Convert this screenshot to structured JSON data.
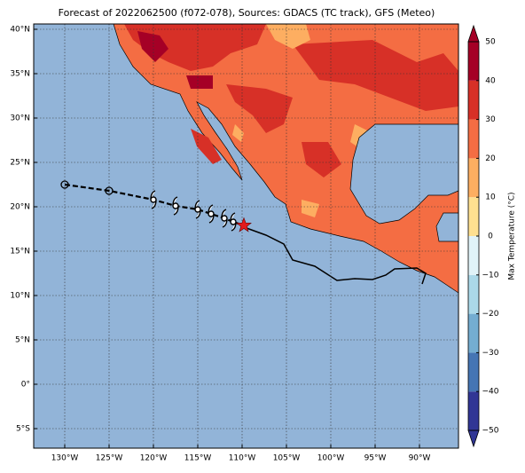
{
  "chart_data": {
    "type": "map",
    "title": "Forecast of 2022062500 (f072-078), Sources: GDACS (TC track), GFS (Meteo)",
    "xlim": [
      -133.5,
      -85.6
    ],
    "ylim": [
      -7.2,
      40.6
    ],
    "grid": true,
    "xticks": [
      {
        "value": -130,
        "label": "130°W"
      },
      {
        "value": -125,
        "label": "125°W"
      },
      {
        "value": -120,
        "label": "120°W"
      },
      {
        "value": -115,
        "label": "115°W"
      },
      {
        "value": -110,
        "label": "110°W"
      },
      {
        "value": -105,
        "label": "105°W"
      },
      {
        "value": -100,
        "label": "100°W"
      },
      {
        "value": -95,
        "label": "95°W"
      },
      {
        "value": -90,
        "label": "90°W"
      }
    ],
    "yticks": [
      {
        "value": -5,
        "label": "5°S"
      },
      {
        "value": 0,
        "label": "0°"
      },
      {
        "value": 5,
        "label": "5°N"
      },
      {
        "value": 10,
        "label": "10°N"
      },
      {
        "value": 15,
        "label": "15°N"
      },
      {
        "value": 20,
        "label": "20°N"
      },
      {
        "value": 25,
        "label": "25°N"
      },
      {
        "value": 30,
        "label": "30°N"
      },
      {
        "value": 35,
        "label": "35°N"
      },
      {
        "value": 40,
        "label": "40°N"
      }
    ],
    "track": {
      "x": [
        -130,
        -125,
        -120,
        -117.5,
        -115,
        -113.5,
        -112,
        -111,
        -109.8
      ],
      "y": [
        22.5,
        21.8,
        20.8,
        20.1,
        19.7,
        19.2,
        18.7,
        18.3,
        17.9
      ],
      "markers": [
        "circle",
        "circle",
        "hurricane",
        "hurricane",
        "hurricane",
        "hurricane",
        "hurricane",
        "hurricane",
        "star"
      ],
      "color": "#000000",
      "star_color": "#e31a1c"
    },
    "colorbar": {
      "label": "Max Temperature (°C)",
      "lim": [
        -50,
        50
      ],
      "ticks": [
        {
          "value": -50,
          "label": "−50"
        },
        {
          "value": -40,
          "label": "−40"
        },
        {
          "value": -30,
          "label": "−30"
        },
        {
          "value": -20,
          "label": "−20"
        },
        {
          "value": -10,
          "label": "−10"
        },
        0,
        10,
        20,
        30,
        40,
        50
      ],
      "colors": [
        "#313695",
        "#4575b4",
        "#74add1",
        "#abd9e9",
        "#e0f3f8",
        "#fee090",
        "#fdae61",
        "#f46d43",
        "#d73027",
        "#a50026"
      ]
    }
  }
}
